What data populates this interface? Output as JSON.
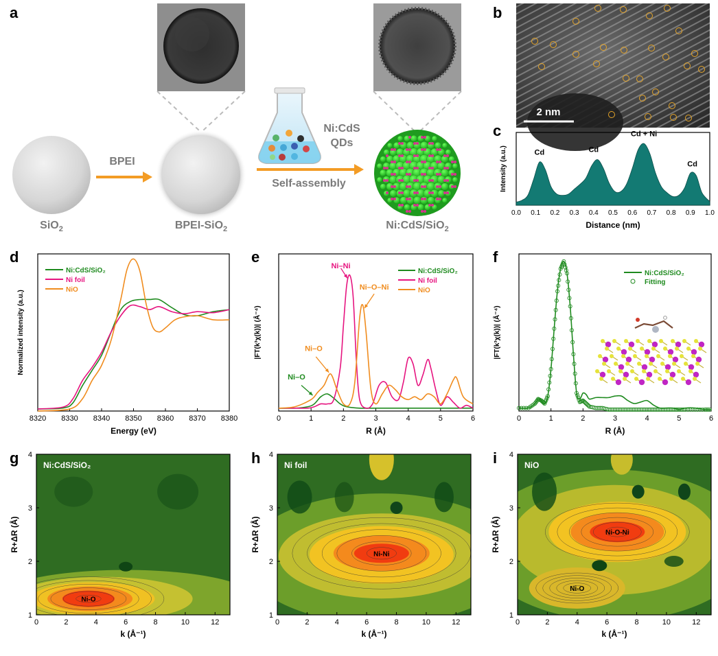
{
  "panel_letters": {
    "a": "a",
    "b": "b",
    "c": "c",
    "d": "d",
    "e": "e",
    "f": "f",
    "g": "g",
    "h": "h",
    "i": "i"
  },
  "schematic": {
    "sio2": "SiO",
    "sio2_sub": "2",
    "bpei_arrow": "BPEI",
    "bpei_sio2": "BPEI-SiO",
    "bpei_sio2_sub": "2",
    "qds_line1": "Ni:CdS",
    "qds_line2": "QDs",
    "self_assembly": "Self-assembly",
    "product": "Ni:CdS/SiO",
    "product_sub": "2"
  },
  "tem_scale_label": "2 nm",
  "colors": {
    "ni_cds": "#1e8a1e",
    "ni_foil": "#e6137f",
    "nio": "#f08c1e",
    "fill_c": "#137a73",
    "arrow": "#f39c25",
    "grey_label": "#7a7a7a"
  },
  "chart_data": [
    {
      "id": "c",
      "type": "area",
      "xlabel": "Distance (nm)",
      "ylabel": "Intensity (a.u.)",
      "xlim": [
        0,
        1.0
      ],
      "xticks": [
        "0.0",
        "0.1",
        "0.2",
        "0.3",
        "0.4",
        "0.5",
        "0.6",
        "0.7",
        "0.8",
        "0.9",
        "1.0"
      ],
      "x": [
        0.0,
        0.03,
        0.06,
        0.09,
        0.12,
        0.15,
        0.18,
        0.21,
        0.24,
        0.27,
        0.3,
        0.33,
        0.36,
        0.39,
        0.42,
        0.45,
        0.48,
        0.51,
        0.54,
        0.57,
        0.6,
        0.63,
        0.66,
        0.69,
        0.72,
        0.75,
        0.78,
        0.81,
        0.84,
        0.87,
        0.9,
        0.93,
        0.96,
        1.0
      ],
      "y": [
        0.05,
        0.08,
        0.16,
        0.42,
        0.7,
        0.58,
        0.3,
        0.18,
        0.16,
        0.18,
        0.26,
        0.34,
        0.44,
        0.64,
        0.74,
        0.6,
        0.36,
        0.22,
        0.22,
        0.34,
        0.6,
        0.9,
        1.0,
        0.84,
        0.52,
        0.3,
        0.2,
        0.14,
        0.16,
        0.28,
        0.52,
        0.48,
        0.2,
        0.06
      ],
      "annotations": [
        {
          "text": "Cd",
          "x": 0.12
        },
        {
          "text": "Cd",
          "x": 0.4
        },
        {
          "text": "Cd + Ni",
          "x": 0.66
        },
        {
          "text": "Cd",
          "x": 0.91
        }
      ]
    },
    {
      "id": "d",
      "type": "line",
      "xlabel": "Energy (eV)",
      "ylabel": "Normalized intensity (a.u.)",
      "xlim": [
        8320,
        8380
      ],
      "ylim": [
        0,
        1.55
      ],
      "xticks": [
        "8320",
        "8330",
        "8340",
        "8350",
        "8360",
        "8370",
        "8380"
      ],
      "series": [
        {
          "name": "Ni:CdS/SiO₂",
          "color": "#1e8a1e",
          "x": [
            8320,
            8328,
            8331,
            8334,
            8337,
            8340,
            8343,
            8346,
            8349,
            8352,
            8355,
            8358,
            8362,
            8366,
            8370,
            8375,
            8380
          ],
          "y": [
            0.02,
            0.03,
            0.08,
            0.25,
            0.4,
            0.55,
            0.78,
            1.0,
            1.08,
            1.1,
            1.1,
            1.1,
            1.02,
            0.95,
            0.94,
            0.98,
            1.0
          ]
        },
        {
          "name": "Ni foil",
          "color": "#e6137f",
          "x": [
            8320,
            8328,
            8331,
            8334,
            8337,
            8340,
            8343,
            8346,
            8349,
            8352,
            8355,
            8358,
            8362,
            8366,
            8370,
            8375,
            8380
          ],
          "y": [
            0.02,
            0.04,
            0.12,
            0.3,
            0.43,
            0.58,
            0.78,
            0.94,
            1.04,
            1.03,
            1.0,
            1.03,
            0.98,
            0.96,
            0.98,
            0.97,
            1.0
          ]
        },
        {
          "name": "NiO",
          "color": "#f08c1e",
          "x": [
            8320,
            8330,
            8334,
            8337,
            8340,
            8343,
            8346,
            8348,
            8350,
            8352,
            8354,
            8356,
            8358,
            8360,
            8363,
            8366,
            8370,
            8375,
            8380
          ],
          "y": [
            0.0,
            0.02,
            0.12,
            0.3,
            0.45,
            0.7,
            1.1,
            1.4,
            1.5,
            1.38,
            1.05,
            0.83,
            0.78,
            0.82,
            0.9,
            0.93,
            0.94,
            0.9,
            0.9
          ]
        }
      ]
    },
    {
      "id": "e",
      "type": "line",
      "xlabel": "R (Å)",
      "ylabel": "|FT(k³χ(k))| (Å⁻⁴)",
      "xlim": [
        0,
        6
      ],
      "ylim": [
        0,
        1.1
      ],
      "xticks": [
        "0",
        "1",
        "2",
        "3",
        "4",
        "5",
        "6"
      ],
      "series": [
        {
          "name": "Ni:CdS/SiO₂",
          "color": "#1e8a1e",
          "x": [
            0,
            0.5,
            0.9,
            1.1,
            1.3,
            1.5,
            1.7,
            1.9,
            2.1,
            2.5,
            3,
            4,
            5,
            6
          ],
          "y": [
            0.02,
            0.02,
            0.03,
            0.05,
            0.1,
            0.12,
            0.09,
            0.05,
            0.03,
            0.02,
            0.02,
            0.02,
            0.02,
            0.02
          ]
        },
        {
          "name": "Ni foil",
          "color": "#e6137f",
          "x": [
            0,
            0.5,
            0.9,
            1.1,
            1.3,
            1.5,
            1.7,
            1.9,
            2.0,
            2.1,
            2.2,
            2.3,
            2.4,
            2.5,
            2.7,
            2.9,
            3.1,
            3.3,
            3.5,
            3.7,
            3.85,
            4.0,
            4.15,
            4.3,
            4.45,
            4.6,
            4.7,
            4.85,
            5.0,
            5.2,
            5.4,
            5.6,
            5.8,
            6.0
          ],
          "y": [
            0.02,
            0.02,
            0.02,
            0.03,
            0.05,
            0.05,
            0.08,
            0.3,
            0.6,
            0.88,
            0.95,
            0.8,
            0.35,
            0.08,
            0.02,
            0.05,
            0.18,
            0.2,
            0.1,
            0.08,
            0.2,
            0.37,
            0.33,
            0.18,
            0.25,
            0.36,
            0.3,
            0.15,
            0.04,
            0.1,
            0.06,
            0.02,
            0.04,
            0.02
          ]
        },
        {
          "name": "NiO",
          "color": "#f08c1e",
          "x": [
            0,
            0.5,
            1.0,
            1.2,
            1.4,
            1.6,
            1.8,
            2.0,
            2.2,
            2.35,
            2.5,
            2.6,
            2.7,
            2.85,
            3.0,
            3.2,
            3.4,
            3.6,
            3.8,
            4.0,
            4.2,
            4.4,
            4.6,
            4.8,
            5.0,
            5.2,
            5.4,
            5.5,
            5.7,
            6.0
          ],
          "y": [
            0.02,
            0.03,
            0.08,
            0.13,
            0.18,
            0.26,
            0.15,
            0.05,
            0.05,
            0.2,
            0.65,
            0.74,
            0.55,
            0.15,
            0.05,
            0.12,
            0.18,
            0.15,
            0.1,
            0.08,
            0.1,
            0.08,
            0.12,
            0.1,
            0.05,
            0.12,
            0.22,
            0.23,
            0.1,
            0.05
          ]
        }
      ],
      "annotations": [
        {
          "text": "Ni–Ni",
          "color": "#e6137f",
          "x": 1.92,
          "y": 1.0
        },
        {
          "text": "Ni–O–Ni",
          "color": "#f08c1e",
          "x": 2.95,
          "y": 0.85
        },
        {
          "text": "Ni–O",
          "color": "#f08c1e",
          "x": 1.08,
          "y": 0.42
        },
        {
          "text": "Ni–O",
          "color": "#1e8a1e",
          "x": 0.55,
          "y": 0.22
        }
      ]
    },
    {
      "id": "f",
      "type": "line",
      "xlabel": "R (Å)",
      "ylabel": "|FT(k³χ(k))| (Å⁻⁴)",
      "xlim": [
        0,
        6
      ],
      "ylim": [
        0,
        1.05
      ],
      "xticks": [
        "0",
        "1",
        "2",
        "3",
        "4",
        "5",
        "6"
      ],
      "series": [
        {
          "name": "Ni:CdS/SiO₂",
          "color": "#1e8a1e",
          "style": "line",
          "x": [
            0,
            0.3,
            0.5,
            0.6,
            0.7,
            0.8,
            0.9,
            1.0,
            1.1,
            1.2,
            1.3,
            1.4,
            1.5,
            1.6,
            1.7,
            1.8,
            1.9,
            2.0,
            2.1,
            2.2,
            2.4,
            2.6,
            2.8,
            3.0,
            3.2,
            3.4,
            3.6,
            3.8,
            4.0,
            4.2,
            4.4,
            4.6,
            4.8,
            5.0,
            5.2,
            5.5,
            5.8,
            6.0
          ],
          "y": [
            0.02,
            0.02,
            0.05,
            0.08,
            0.07,
            0.05,
            0.1,
            0.28,
            0.55,
            0.8,
            0.95,
            1.0,
            0.92,
            0.7,
            0.38,
            0.12,
            0.08,
            0.12,
            0.11,
            0.08,
            0.09,
            0.09,
            0.09,
            0.1,
            0.1,
            0.07,
            0.05,
            0.06,
            0.07,
            0.04,
            0.02,
            0.02,
            0.02,
            0.01,
            0.02,
            0.02,
            0.01,
            0.01
          ]
        },
        {
          "name": "Fitting",
          "color": "#1e8a1e",
          "style": "circles",
          "x": [
            0,
            0.3,
            0.5,
            0.6,
            0.7,
            0.8,
            0.9,
            1.0,
            1.1,
            1.2,
            1.3,
            1.4,
            1.5,
            1.6,
            1.7,
            1.8,
            1.9,
            2.0,
            2.1,
            2.2,
            2.4,
            2.6,
            2.8,
            3.0,
            3.2,
            3.4,
            3.6,
            3.8,
            4.0,
            4.2,
            4.4,
            4.6,
            4.8,
            5.0,
            5.2,
            5.5,
            5.8,
            6.0
          ],
          "y": [
            0.02,
            0.02,
            0.05,
            0.08,
            0.07,
            0.05,
            0.1,
            0.28,
            0.55,
            0.8,
            0.95,
            1.0,
            0.92,
            0.7,
            0.38,
            0.12,
            0.06,
            0.07,
            0.05,
            0.03,
            0.02,
            0.02,
            0.01,
            0.01,
            0.01,
            0.01,
            0.01,
            0.01,
            0.01,
            0.01,
            0.01,
            0.01,
            0.01,
            0.01,
            0.01,
            0.01,
            0.01,
            0.01
          ]
        }
      ]
    },
    {
      "id": "g",
      "type": "heatmap",
      "title": "Ni:CdS/SiO₂",
      "xlabel": "k (Å⁻¹)",
      "ylabel": "R+ΔR (Å)",
      "xlim": [
        0,
        13
      ],
      "ylim": [
        1,
        4
      ],
      "xticks": [
        "0",
        "2",
        "4",
        "6",
        "8",
        "10",
        "12"
      ],
      "yticks": [
        "1",
        "2",
        "3",
        "4"
      ],
      "peaks": [
        {
          "label": "Ni-O",
          "k": 3.5,
          "r": 1.3
        }
      ]
    },
    {
      "id": "h",
      "type": "heatmap",
      "title": "Ni foil",
      "xlabel": "k (Å⁻¹)",
      "ylabel": "R+ΔR (Å)",
      "xlim": [
        0,
        13
      ],
      "ylim": [
        1,
        4
      ],
      "xticks": [
        "0",
        "2",
        "4",
        "6",
        "8",
        "10",
        "12"
      ],
      "yticks": [
        "1",
        "2",
        "3",
        "4"
      ],
      "peaks": [
        {
          "label": "Ni-Ni",
          "k": 7.0,
          "r": 2.15
        }
      ]
    },
    {
      "id": "i",
      "type": "heatmap",
      "title": "NiO",
      "xlabel": "k (Å⁻¹)",
      "ylabel": "R+ΔR (Å)",
      "xlim": [
        0,
        13
      ],
      "ylim": [
        1,
        4
      ],
      "xticks": [
        "0",
        "2",
        "4",
        "6",
        "8",
        "10",
        "12"
      ],
      "yticks": [
        "1",
        "2",
        "3",
        "4"
      ],
      "peaks": [
        {
          "label": "Ni-O-Ni",
          "k": 6.7,
          "r": 2.55
        },
        {
          "label": "Ni-O",
          "k": 4.0,
          "r": 1.5
        }
      ]
    }
  ]
}
